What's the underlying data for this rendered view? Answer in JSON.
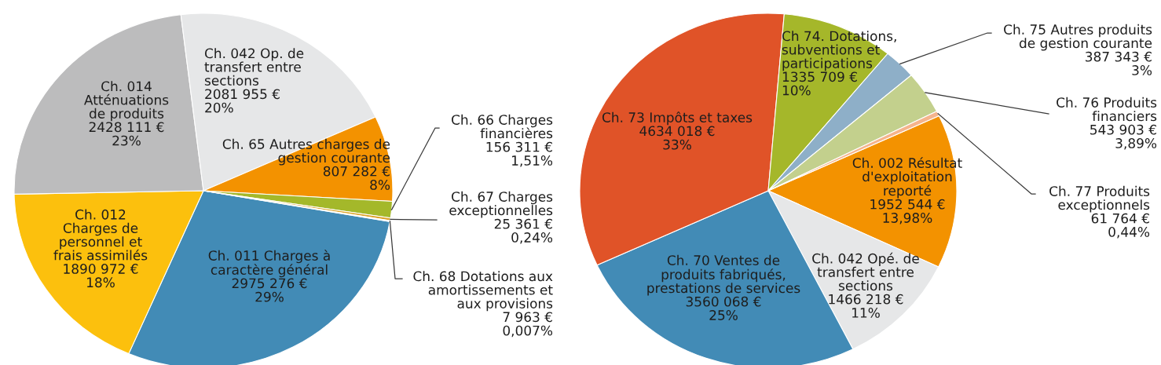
{
  "chart_data": [
    {
      "type": "pie",
      "categories": [
        "Ch. 011 Charges à\ncaractère général",
        "Ch. 012\nCharges de\npersonnel et\nfrais assimilés",
        "Ch. 014\nAtténuations\nde produits",
        "Ch. 042 Op. de\ntransfert entre\nsections",
        "Ch. 65 Autres charges de\ngestion courante",
        "Ch. 66 Charges\nfinancières",
        "Ch. 67 Charges\nexceptionnelles",
        "Ch. 68 Dotations aux\namortissements et\naux provisions"
      ],
      "values": [
        2975276,
        1890972,
        2428111,
        2081955,
        807282,
        156311,
        25361,
        7963
      ],
      "colors": [
        "#428bb6",
        "#fcc00d",
        "#bcbcbd",
        "#e6e7e8",
        "#f39200",
        "#a4b82a",
        "#dca227",
        "#f5c98f"
      ],
      "value_labels": [
        "2975 276 €\n29%",
        "1890 972 €\n18%",
        "2428 111 €\n23%",
        "2081 955 €\n20%",
        "807 282 €\n8%",
        "156 311 €\n1,51%",
        "25 361 €\n0,24%",
        "7 963 €\n0,007%"
      ]
    },
    {
      "type": "pie",
      "categories": [
        "Ch. 002 Résultat\nd'exploitation\nreporté",
        "Ch. 042 Opé. de\ntransfert entre\nsections",
        "Ch. 70 Ventes de\nproduits fabriqués,\nprestations de services",
        "Ch. 73 Impôts et taxes",
        "Ch 74. Dotations,\nsubventions et\nparticipations",
        "Ch. 75 Autres produits\nde gestion courante",
        "Ch. 76 Produits\nfinanciers",
        "Ch. 77 Produits\nexceptionnels"
      ],
      "values": [
        1952544,
        1466218,
        3560068,
        4634018,
        1335709,
        387343,
        543903,
        61764
      ],
      "colors": [
        "#f39200",
        "#e6e7e8",
        "#428bb6",
        "#e05328",
        "#a5b72a",
        "#8eafc8",
        "#c3d08d",
        "#f5b48c"
      ],
      "value_labels": [
        "1952 544 €\n13,98%",
        "1466 218 €\n11%",
        "3560 068 €\n25%",
        "4634 018 €\n33%",
        "1335 709 €\n10%",
        "387 343 €\n3%",
        "543 903 €\n3,89%",
        "61 764 €\n0,44%"
      ]
    }
  ]
}
